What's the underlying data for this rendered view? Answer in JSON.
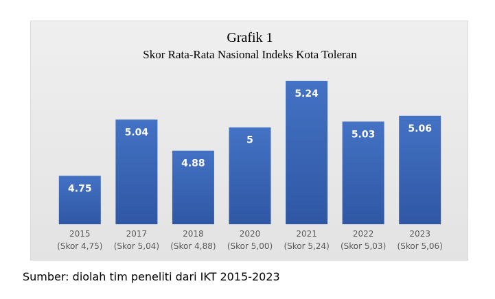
{
  "chart_data": {
    "type": "bar",
    "title": "Grafik 1",
    "subtitle": "Skor Rata-Rata Nasional Indeks Kota Toleran",
    "categories": [
      "2015",
      "2017",
      "2018",
      "2020",
      "2021",
      "2022",
      "2023"
    ],
    "category_sublabels": [
      "(Skor 4,75)",
      "(Skor 5,04)",
      "(Skor 4,88)",
      "(Skor 5,00)",
      "(Skor 5,24)",
      "(Skor 5,03)",
      "(Skor 5,06)"
    ],
    "values": [
      4.75,
      5.04,
      4.88,
      5.0,
      5.24,
      5.03,
      5.06
    ],
    "data_labels": [
      "4.75",
      "5.04",
      "4.88",
      "5",
      "5.24",
      "5.03",
      "5.06"
    ],
    "ylim": [
      4.5,
      5.3
    ],
    "grid": false,
    "legend": "none",
    "bar_color": "#3a63b5"
  },
  "source": "Sumber: diolah tim peneliti dari IKT 2015-2023"
}
